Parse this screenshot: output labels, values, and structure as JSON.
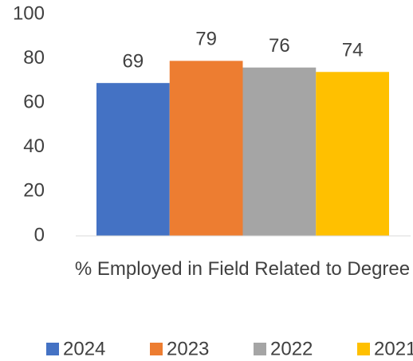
{
  "chart_data": {
    "type": "bar",
    "categories": [
      "% Employed in Field Related to Degree"
    ],
    "series": [
      {
        "name": "2024",
        "color": "#4472c4",
        "values": [
          69
        ]
      },
      {
        "name": "2023",
        "color": "#ed7d31",
        "values": [
          79
        ]
      },
      {
        "name": "2022",
        "color": "#a5a5a5",
        "values": [
          76
        ]
      },
      {
        "name": "2021",
        "color": "#ffc000",
        "values": [
          74
        ]
      }
    ],
    "ylim": [
      0,
      100
    ],
    "yticks": [
      0,
      20,
      40,
      60,
      80,
      100
    ],
    "grid": false,
    "legend": "bottom"
  }
}
